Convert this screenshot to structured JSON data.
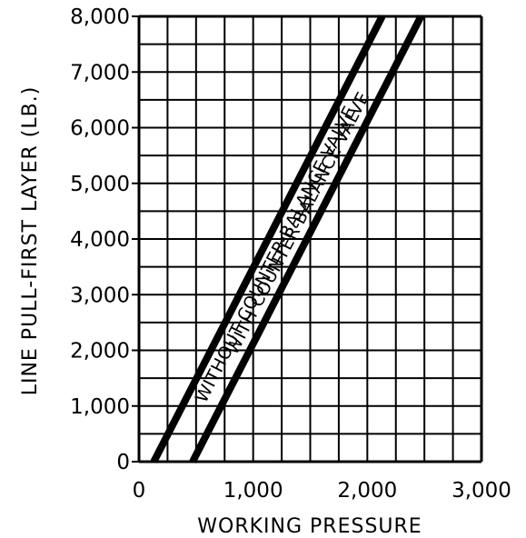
{
  "chart_data": {
    "type": "line",
    "title": "",
    "xlabel": "WORKING PRESSURE",
    "ylabel": "LINE PULL-FIRST LAYER (LB.)",
    "xlim": [
      0,
      3000
    ],
    "ylim": [
      0,
      8000
    ],
    "x_ticks": [
      "0",
      "1,000",
      "2,000",
      "3,000"
    ],
    "y_ticks": [
      "0",
      "1,000",
      "2,000",
      "3,000",
      "4,000",
      "5,000",
      "6,000",
      "7,000",
      "8,000"
    ],
    "grid": true,
    "grid_x_step": 250,
    "grid_y_step": 500,
    "line_color": "#000000",
    "series": [
      {
        "name": "WITHOUT COUNTER-BALANCE VALVE",
        "x": [
          130,
          2130
        ],
        "y": [
          0,
          8000
        ]
      },
      {
        "name": "WITH COUNTER-BALANCE VALVE",
        "x": [
          470,
          2470
        ],
        "y": [
          0,
          8000
        ]
      }
    ]
  }
}
